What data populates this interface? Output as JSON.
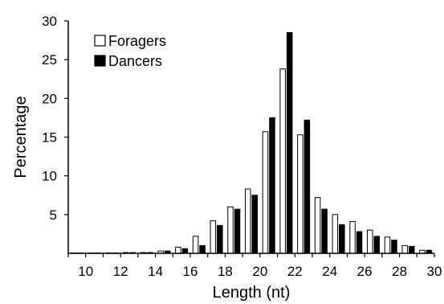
{
  "chart_data": {
    "type": "bar",
    "title": "",
    "xlabel": "Length (nt)",
    "ylabel": "Percentage",
    "xlim": [
      9,
      30
    ],
    "ylim": [
      0,
      30
    ],
    "x_ticks": [
      10,
      12,
      14,
      16,
      18,
      20,
      22,
      24,
      26,
      28,
      30
    ],
    "y_ticks": [
      5,
      10,
      15,
      20,
      25,
      30
    ],
    "categories": [
      9,
      10,
      11,
      12,
      13,
      14,
      15,
      16,
      17,
      18,
      19,
      20,
      21,
      22,
      23,
      24,
      25,
      26,
      27,
      28,
      29
    ],
    "series": [
      {
        "name": "Foragers",
        "fill": "#ffffff",
        "values": [
          0.05,
          0.05,
          0.05,
          0.1,
          0.1,
          0.3,
          0.8,
          2.2,
          4.2,
          6.0,
          8.3,
          15.7,
          23.8,
          15.3,
          7.2,
          5.0,
          4.1,
          3.0,
          2.1,
          1.0,
          0.4
        ]
      },
      {
        "name": "Dancers",
        "fill": "#000000",
        "values": [
          0.05,
          0.05,
          0.05,
          0.1,
          0.1,
          0.3,
          0.6,
          1.0,
          3.6,
          5.7,
          7.5,
          17.5,
          28.5,
          17.2,
          5.7,
          3.7,
          2.8,
          2.2,
          1.7,
          0.9,
          0.4
        ]
      }
    ],
    "legend_position": "top-left",
    "grid": false
  }
}
